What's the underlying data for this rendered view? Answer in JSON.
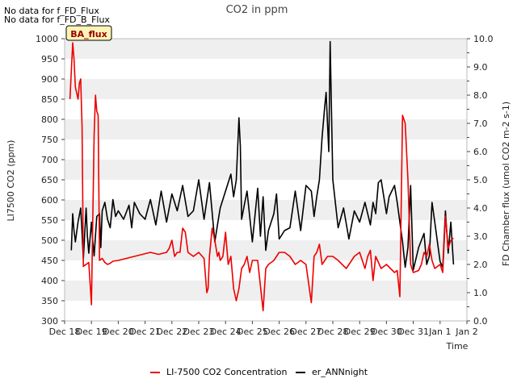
{
  "notices": [
    "No data for f_FD_Flux",
    "No data for f_FD_B_Flux"
  ],
  "badge": {
    "label": "BA_flux"
  },
  "chart_data": {
    "type": "line",
    "title": "CO2 in ppm",
    "xlabel": "Time",
    "ylabel_left": "LI7500 CO2 (ppm)",
    "ylabel_right": "FD Chamber flux (umol CO2 m-2 s-1)",
    "ylim_left": [
      300,
      1000
    ],
    "ylim_right": [
      0.0,
      10.0
    ],
    "xlim": [
      0,
      15
    ],
    "yticks_left": [
      300,
      350,
      400,
      450,
      500,
      550,
      600,
      650,
      700,
      750,
      800,
      850,
      900,
      950,
      1000
    ],
    "yticks_right": [
      "0.0",
      "1.0",
      "2.0",
      "3.0",
      "4.0",
      "5.0",
      "6.0",
      "7.0",
      "8.0",
      "9.0",
      "10.0"
    ],
    "xtick_labels": [
      "Dec 18",
      "Dec 19",
      "Dec 20",
      "Dec 21",
      "Dec 22",
      "Dec 23",
      "Dec 24",
      "Dec 25",
      "Dec 26",
      "Dec 27",
      "Dec 28",
      "Dec 29",
      "Dec 30",
      "Dec 31",
      "Jan 1",
      "Jan 2"
    ],
    "grid": "horizontal bands",
    "legend_position": "bottom-center",
    "colors": {
      "co2": "#ee0000",
      "flux": "#000000",
      "band": "#efefef",
      "badge_bg": "#fdf5b8",
      "badge_text": "#990000"
    },
    "series": [
      {
        "name": "LI-7500 CO2 Concentration",
        "axis": "left",
        "x": [
          0.2,
          0.3,
          0.35,
          0.4,
          0.5,
          0.55,
          0.6,
          0.65,
          0.7,
          0.75,
          0.8,
          0.9,
          1.0,
          1.1,
          1.15,
          1.2,
          1.25,
          1.3,
          1.4,
          1.5,
          1.6,
          1.7,
          1.8,
          2.0,
          2.3,
          2.6,
          2.9,
          3.2,
          3.5,
          3.8,
          3.9,
          4.0,
          4.1,
          4.2,
          4.3,
          4.4,
          4.5,
          4.6,
          4.7,
          4.8,
          5.0,
          5.2,
          5.3,
          5.35,
          5.4,
          5.5,
          5.6,
          5.7,
          5.75,
          5.8,
          5.9,
          6.0,
          6.1,
          6.2,
          6.3,
          6.4,
          6.5,
          6.6,
          6.7,
          6.8,
          6.9,
          7.0,
          7.2,
          7.4,
          7.5,
          7.6,
          7.8,
          8.0,
          8.2,
          8.4,
          8.6,
          8.8,
          9.0,
          9.2,
          9.3,
          9.4,
          9.5,
          9.6,
          9.8,
          10.0,
          10.2,
          10.5,
          10.8,
          11.0,
          11.2,
          11.3,
          11.4,
          11.5,
          11.6,
          11.8,
          12.0,
          12.3,
          12.4,
          12.5,
          12.6,
          12.7,
          12.8,
          12.9,
          13.0,
          13.2,
          13.3,
          13.4,
          13.5,
          13.6,
          13.7,
          13.8,
          14.0,
          14.1,
          14.2,
          14.3,
          14.4,
          14.5
        ],
        "values": [
          850,
          990,
          950,
          880,
          850,
          890,
          900,
          780,
          435,
          438,
          440,
          445,
          340,
          760,
          860,
          820,
          810,
          450,
          455,
          445,
          440,
          443,
          448,
          450,
          455,
          460,
          465,
          470,
          465,
          470,
          480,
          500,
          460,
          470,
          470,
          530,
          520,
          470,
          465,
          460,
          470,
          455,
          370,
          380,
          460,
          530,
          500,
          460,
          470,
          450,
          460,
          520,
          440,
          460,
          380,
          350,
          380,
          430,
          440,
          460,
          420,
          450,
          450,
          325,
          430,
          440,
          450,
          470,
          470,
          460,
          440,
          450,
          440,
          345,
          460,
          470,
          490,
          440,
          460,
          460,
          450,
          430,
          460,
          470,
          430,
          460,
          475,
          400,
          460,
          430,
          440,
          420,
          425,
          360,
          810,
          790,
          650,
          440,
          420,
          425,
          440,
          470,
          460,
          490,
          450,
          430,
          440,
          420,
          560,
          480,
          500,
          505
        ]
      },
      {
        "name": "er_ANNnight",
        "axis": "right",
        "x": [
          0.25,
          0.3,
          0.35,
          0.4,
          0.5,
          0.6,
          0.65,
          0.7,
          0.8,
          0.85,
          0.9,
          1.0,
          1.05,
          1.1,
          1.2,
          1.3,
          1.35,
          1.4,
          1.5,
          1.6,
          1.7,
          1.8,
          1.9,
          2.0,
          2.2,
          2.4,
          2.5,
          2.6,
          2.8,
          3.0,
          3.2,
          3.4,
          3.6,
          3.8,
          4.0,
          4.2,
          4.4,
          4.6,
          4.8,
          5.0,
          5.2,
          5.4,
          5.6,
          5.7,
          5.8,
          6.0,
          6.2,
          6.3,
          6.4,
          6.5,
          6.55,
          6.6,
          6.7,
          6.8,
          7.0,
          7.2,
          7.3,
          7.4,
          7.5,
          7.6,
          7.8,
          7.9,
          8.0,
          8.2,
          8.4,
          8.6,
          8.8,
          9.0,
          9.2,
          9.3,
          9.4,
          9.5,
          9.6,
          9.7,
          9.75,
          9.8,
          9.85,
          9.9,
          10.0,
          10.2,
          10.4,
          10.6,
          10.8,
          11.0,
          11.2,
          11.4,
          11.5,
          11.6,
          11.7,
          11.8,
          12.0,
          12.1,
          12.2,
          12.3,
          12.4,
          12.6,
          12.7,
          12.8,
          12.9,
          13.0,
          13.2,
          13.4,
          13.5,
          13.6,
          13.7,
          13.8,
          13.9,
          14.0,
          14.1,
          14.2,
          14.3,
          14.4,
          14.5
        ],
        "values": [
          2.5,
          3.8,
          3.2,
          2.8,
          3.5,
          4.0,
          3.1,
          2.2,
          4.0,
          3.0,
          2.4,
          3.5,
          2.8,
          2.3,
          3.7,
          3.8,
          2.6,
          3.9,
          4.2,
          3.6,
          3.3,
          4.3,
          3.7,
          3.9,
          3.6,
          4.1,
          3.3,
          4.2,
          3.8,
          3.6,
          4.3,
          3.4,
          4.6,
          3.5,
          4.5,
          3.9,
          4.8,
          3.7,
          3.9,
          5.0,
          3.6,
          4.9,
          2.8,
          3.4,
          4.0,
          4.6,
          5.2,
          4.4,
          5.0,
          7.2,
          6.2,
          3.6,
          4.1,
          4.6,
          2.8,
          4.7,
          3.0,
          4.4,
          2.5,
          3.2,
          3.8,
          4.5,
          2.9,
          3.2,
          3.3,
          4.6,
          3.2,
          4.8,
          4.6,
          3.7,
          4.4,
          5.0,
          6.5,
          7.6,
          8.1,
          7.0,
          6.0,
          9.9,
          5.0,
          3.3,
          4.0,
          2.9,
          3.9,
          3.5,
          4.2,
          3.4,
          4.2,
          3.8,
          4.9,
          5.0,
          3.8,
          4.4,
          4.6,
          4.8,
          4.2,
          2.8,
          1.9,
          2.6,
          4.8,
          1.8,
          2.6,
          3.1,
          2.0,
          2.3,
          4.2,
          3.5,
          2.8,
          2.1,
          1.9,
          3.9,
          2.4,
          3.5,
          2.0
        ]
      }
    ]
  }
}
